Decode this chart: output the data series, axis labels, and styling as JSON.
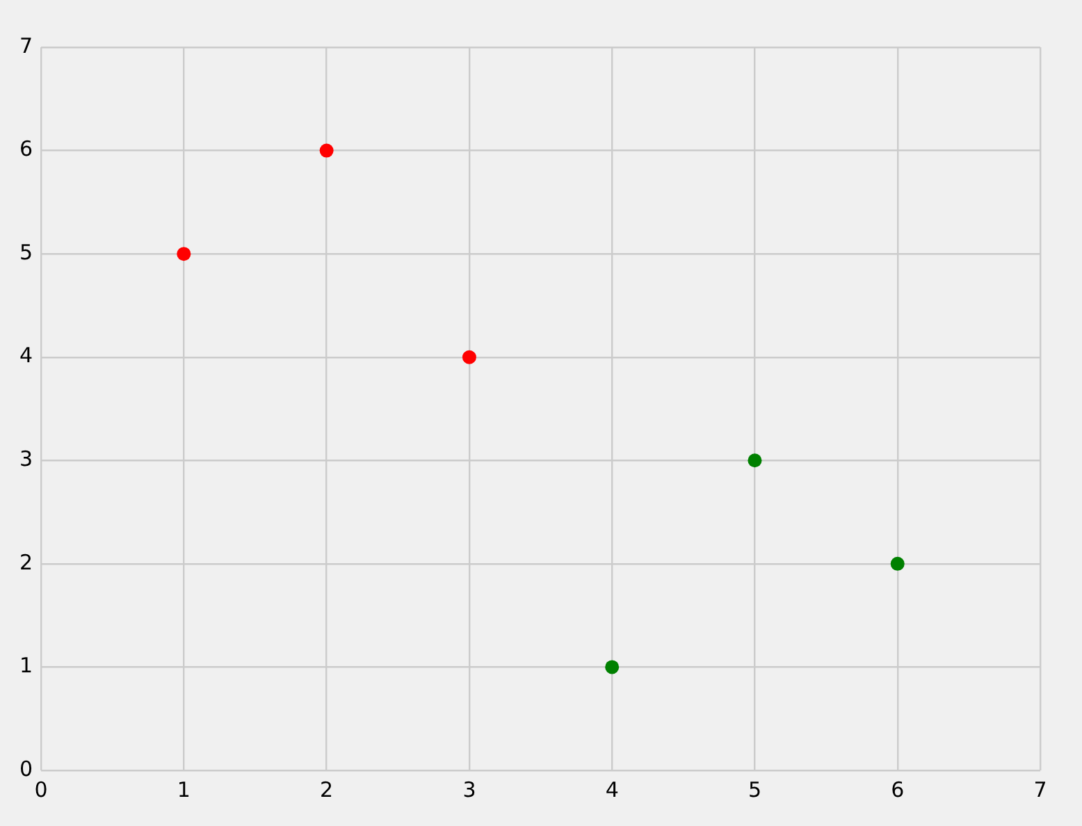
{
  "chart_data": {
    "type": "scatter",
    "marker": "circle",
    "grid": true,
    "legend": false,
    "xlim": [
      0,
      7
    ],
    "ylim": [
      0,
      7
    ],
    "xticks": [
      0,
      1,
      2,
      3,
      4,
      5,
      6,
      7
    ],
    "yticks": [
      0,
      1,
      2,
      3,
      4,
      5,
      6,
      7
    ],
    "series": [
      {
        "color": "#ff0000",
        "x": [
          1,
          2,
          3
        ],
        "values": [
          5,
          6,
          4
        ]
      },
      {
        "color": "#008000",
        "x": [
          4,
          5,
          6
        ],
        "values": [
          1,
          3,
          2
        ]
      }
    ]
  }
}
